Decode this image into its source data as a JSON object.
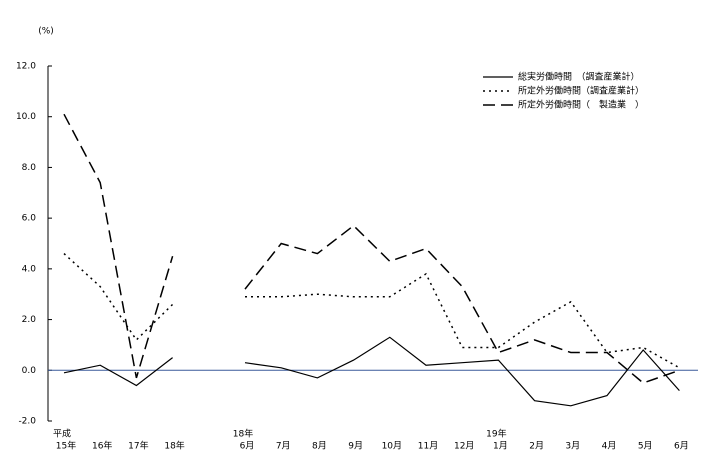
{
  "chart_data": {
    "type": "line",
    "y_unit_label": "(%)",
    "categories": [
      "15年",
      "16年",
      "17年",
      "18年",
      null,
      "6月",
      "7月",
      "8月",
      "9月",
      "10月",
      "11月",
      "12月",
      "1月",
      "2月",
      "3月",
      "4月",
      "5月",
      "6月"
    ],
    "period_labels": [
      "平成",
      "18年",
      "19年"
    ],
    "series": [
      {
        "name": "総実労働時間　（調査産業計）",
        "color": "#000000",
        "dash": "none",
        "values": [
          -0.1,
          0.2,
          -0.6,
          0.5,
          null,
          0.3,
          0.1,
          -0.3,
          0.4,
          1.3,
          0.2,
          0.3,
          0.4,
          -1.2,
          -1.4,
          -1.0,
          0.8,
          -0.8
        ]
      },
      {
        "name": "所定外労働時間（調査産業計）",
        "color": "#000000",
        "dash": "2,4",
        "values": [
          4.6,
          3.3,
          1.2,
          2.6,
          null,
          2.9,
          2.9,
          3.0,
          2.9,
          2.9,
          3.8,
          0.9,
          0.9,
          1.9,
          2.7,
          0.7,
          0.9,
          0.1
        ]
      },
      {
        "name": "所定外労働時間（　製造業　）",
        "color": "#000000",
        "dash": "12,6",
        "values": [
          10.1,
          7.4,
          -0.3,
          4.5,
          null,
          3.2,
          5.0,
          4.6,
          5.7,
          4.3,
          4.8,
          3.3,
          0.7,
          1.2,
          0.7,
          0.7,
          -0.5,
          0.0
        ]
      }
    ],
    "ylim": [
      -2,
      12
    ],
    "yticks": [
      {
        "value": -2,
        "label": "-2.0"
      },
      {
        "value": 0,
        "label": "0.0"
      },
      {
        "value": 2,
        "label": "2.0"
      },
      {
        "value": 4,
        "label": "4.0"
      },
      {
        "value": 6,
        "label": "6.0"
      },
      {
        "value": 8,
        "label": "8.0"
      },
      {
        "value": 10,
        "label": "10.0"
      },
      {
        "value": 12,
        "label": "12.0"
      }
    ],
    "zero_line_color": "#3a5a9a"
  }
}
